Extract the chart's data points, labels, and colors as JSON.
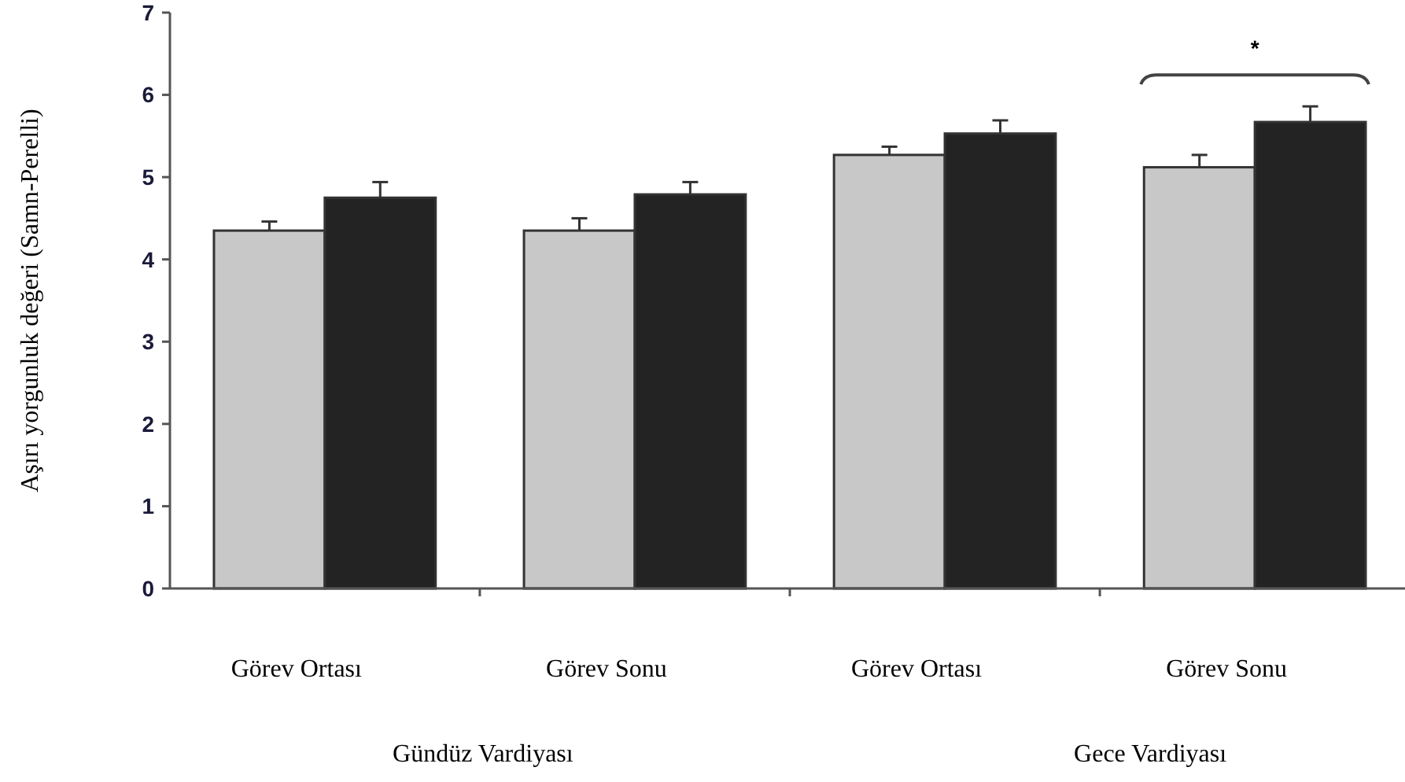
{
  "chart_data": {
    "type": "bar",
    "ylabel": "Aşırı yorgunluk değeri (Samn-Perelli)",
    "categories": [
      "Görev Ortası",
      "Görev Sonu",
      "Görev Ortası",
      "Görev Sonu"
    ],
    "series": [
      {
        "color": "#c8c8c8",
        "values": [
          4.35,
          4.35,
          5.27,
          5.12
        ],
        "errors": [
          0.11,
          0.15,
          0.1,
          0.15
        ]
      },
      {
        "color": "#232323",
        "values": [
          4.75,
          4.79,
          5.53,
          5.67
        ],
        "errors": [
          0.19,
          0.15,
          0.16,
          0.19
        ]
      }
    ],
    "ylim": [
      0,
      7
    ],
    "yticks": [
      0,
      1,
      2,
      3,
      4,
      5,
      6,
      7
    ],
    "grid": false,
    "annotations": [
      "*",
      "Gündüz Vardiyası",
      "Gece Vardiyası"
    ]
  }
}
